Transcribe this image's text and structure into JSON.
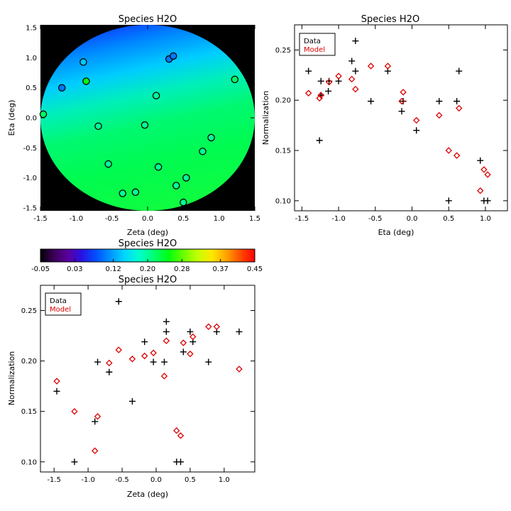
{
  "chart_data": [
    {
      "type": "scatter",
      "id": "map",
      "title": "Species H2O",
      "xlabel": "Zeta (deg)",
      "ylabel": "Eta (deg)",
      "xlim": [
        -1.5,
        1.5
      ],
      "ylim": [
        -1.55,
        1.55
      ],
      "xticks": [
        "-1.5",
        "-1.0",
        "-0.5",
        "0.0",
        "0.5",
        "1.0",
        "1.5"
      ],
      "yticks": [
        "-1.5",
        "-1.0",
        "-0.5",
        "0.0",
        "0.5",
        "1.0",
        "1.5"
      ],
      "points": [
        {
          "x": -1.46,
          "y": 0.06,
          "v": 0.22
        },
        {
          "x": -1.2,
          "y": 0.5,
          "v": 0.1
        },
        {
          "x": -0.9,
          "y": 0.93,
          "v": 0.14
        },
        {
          "x": -0.86,
          "y": 0.61,
          "v": 0.25
        },
        {
          "x": -0.69,
          "y": -0.14,
          "v": 0.2
        },
        {
          "x": -0.55,
          "y": -0.77,
          "v": 0.2
        },
        {
          "x": -0.35,
          "y": -1.26,
          "v": 0.2
        },
        {
          "x": -0.17,
          "y": -1.24,
          "v": 0.2
        },
        {
          "x": -0.04,
          "y": -0.12,
          "v": 0.2
        },
        {
          "x": 0.12,
          "y": 0.37,
          "v": 0.2
        },
        {
          "x": 0.15,
          "y": -0.82,
          "v": 0.2
        },
        {
          "x": 0.3,
          "y": 0.98,
          "v": 0.1
        },
        {
          "x": 0.36,
          "y": 1.03,
          "v": 0.1
        },
        {
          "x": 0.4,
          "y": -1.13,
          "v": 0.2
        },
        {
          "x": 0.5,
          "y": -1.41,
          "v": 0.2
        },
        {
          "x": 0.54,
          "y": -1.0,
          "v": 0.2
        },
        {
          "x": 0.77,
          "y": -0.56,
          "v": 0.2
        },
        {
          "x": 0.89,
          "y": -0.33,
          "v": 0.2
        },
        {
          "x": 1.22,
          "y": 0.64,
          "v": 0.22
        }
      ]
    },
    {
      "type": "colorbar",
      "id": "colorbar",
      "title": "Species H2O",
      "range": [
        -0.05,
        0.45
      ],
      "ticks": [
        "-0.05",
        "0.03",
        "0.12",
        "0.20",
        "0.28",
        "0.37",
        "0.45"
      ]
    },
    {
      "type": "scatter",
      "id": "eta",
      "title": "Species H2O",
      "xlabel": "Eta (deg)",
      "ylabel": "Normalization",
      "xlim": [
        -1.6,
        1.3
      ],
      "ylim": [
        0.09,
        0.275
      ],
      "xticks": [
        "-1.5",
        "-1.0",
        "-0.5",
        "0.0",
        "0.5",
        "1.0"
      ],
      "yticks": [
        "0.10",
        "0.15",
        "0.20",
        "0.25"
      ],
      "legend": {
        "position": "top-left",
        "entries": [
          "Data",
          "Model"
        ]
      },
      "series": [
        {
          "name": "Data",
          "marker": "plus",
          "color": "#000000",
          "x": [
            -1.41,
            -1.26,
            -1.24,
            -1.24,
            -1.14,
            -1.13,
            -1.0,
            -0.82,
            -0.77,
            -0.77,
            -0.56,
            -0.33,
            -0.14,
            -0.12,
            0.06,
            0.37,
            0.5,
            0.61,
            0.64,
            0.93,
            0.98,
            1.03
          ],
          "y": [
            0.229,
            0.16,
            0.219,
            0.205,
            0.209,
            0.219,
            0.219,
            0.239,
            0.259,
            0.229,
            0.199,
            0.229,
            0.189,
            0.199,
            0.17,
            0.199,
            0.1,
            0.199,
            0.229,
            0.14,
            0.1,
            0.1
          ]
        },
        {
          "name": "Model",
          "marker": "diamond",
          "color": "#dd0000",
          "x": [
            -1.41,
            -1.26,
            -1.24,
            -1.13,
            -1.0,
            -0.82,
            -0.77,
            -0.56,
            -0.33,
            -0.14,
            -0.12,
            0.06,
            0.37,
            0.5,
            0.61,
            0.64,
            0.93,
            0.98,
            1.03
          ],
          "y": [
            0.207,
            0.202,
            0.205,
            0.218,
            0.224,
            0.221,
            0.211,
            0.234,
            0.234,
            0.199,
            0.208,
            0.18,
            0.185,
            0.15,
            0.145,
            0.192,
            0.11,
            0.131,
            0.126
          ]
        }
      ]
    },
    {
      "type": "scatter",
      "id": "zeta",
      "title": "Species H2O",
      "xlabel": "Zeta (deg)",
      "ylabel": "Normalization",
      "xlim": [
        -1.7,
        1.45
      ],
      "ylim": [
        0.09,
        0.275
      ],
      "xticks": [
        "-1.5",
        "-1.0",
        "-0.5",
        "0.0",
        "0.5",
        "1.0"
      ],
      "yticks": [
        "0.10",
        "0.15",
        "0.20",
        "0.25"
      ],
      "legend": {
        "position": "top-left",
        "entries": [
          "Data",
          "Model"
        ]
      },
      "series": [
        {
          "name": "Data",
          "marker": "plus",
          "color": "#000000",
          "x": [
            -1.46,
            -1.2,
            -0.9,
            -0.86,
            -0.69,
            -0.55,
            -0.35,
            -0.17,
            -0.04,
            0.12,
            0.15,
            0.15,
            0.3,
            0.36,
            0.4,
            0.5,
            0.54,
            0.77,
            0.89,
            1.22
          ],
          "y": [
            0.17,
            0.1,
            0.14,
            0.199,
            0.189,
            0.259,
            0.16,
            0.219,
            0.199,
            0.199,
            0.239,
            0.229,
            0.1,
            0.1,
            0.209,
            0.229,
            0.219,
            0.199,
            0.229,
            0.229
          ]
        },
        {
          "name": "Model",
          "marker": "diamond",
          "color": "#dd0000",
          "x": [
            -1.46,
            -1.2,
            -0.9,
            -0.86,
            -0.69,
            -0.55,
            -0.35,
            -0.17,
            -0.04,
            0.12,
            0.15,
            0.3,
            0.36,
            0.4,
            0.5,
            0.54,
            0.77,
            0.89,
            1.22
          ],
          "y": [
            0.18,
            0.15,
            0.111,
            0.145,
            0.198,
            0.211,
            0.202,
            0.205,
            0.208,
            0.185,
            0.22,
            0.131,
            0.126,
            0.218,
            0.207,
            0.224,
            0.234,
            0.234,
            0.192
          ]
        }
      ]
    }
  ]
}
